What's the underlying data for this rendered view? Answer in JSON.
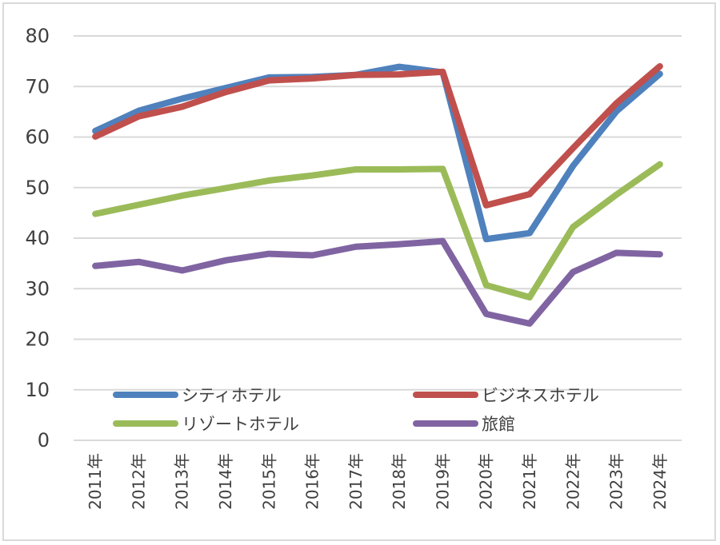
{
  "chart_data": {
    "type": "line",
    "title": "",
    "xlabel": "",
    "ylabel": "",
    "categories": [
      "2011年",
      "2012年",
      "2013年",
      "2014年",
      "2015年",
      "2016年",
      "2017年",
      "2018年",
      "2019年",
      "2020年",
      "2021年",
      "2022年",
      "2023年",
      "2024年"
    ],
    "ylim": [
      0,
      80
    ],
    "yticks": [
      0,
      10,
      20,
      30,
      40,
      50,
      60,
      70,
      80
    ],
    "grid": true,
    "legend_placement": "bottom-inside",
    "series": [
      {
        "name": "シティホテル",
        "color": "#4f81bd",
        "values": [
          61.2,
          65.2,
          67.6,
          69.7,
          71.8,
          71.9,
          72.3,
          73.9,
          72.8,
          39.8,
          41.0,
          54.3,
          65.1,
          72.5
        ]
      },
      {
        "name": "ビジネスホテル",
        "color": "#c0504d",
        "values": [
          60.1,
          64.1,
          66.0,
          68.9,
          71.2,
          71.6,
          72.3,
          72.4,
          72.9,
          46.5,
          48.7,
          57.8,
          66.7,
          74.0
        ]
      },
      {
        "name": "リゾートホテル",
        "color": "#9bbb59",
        "values": [
          44.8,
          46.6,
          48.4,
          49.9,
          51.4,
          52.4,
          53.6,
          53.6,
          53.7,
          30.7,
          28.3,
          42.2,
          48.6,
          54.6
        ]
      },
      {
        "name": "旅館",
        "color": "#8064a2",
        "values": [
          34.5,
          35.3,
          33.6,
          35.6,
          36.9,
          36.6,
          38.3,
          38.8,
          39.4,
          25.0,
          23.1,
          33.3,
          37.1,
          36.8
        ]
      }
    ]
  }
}
